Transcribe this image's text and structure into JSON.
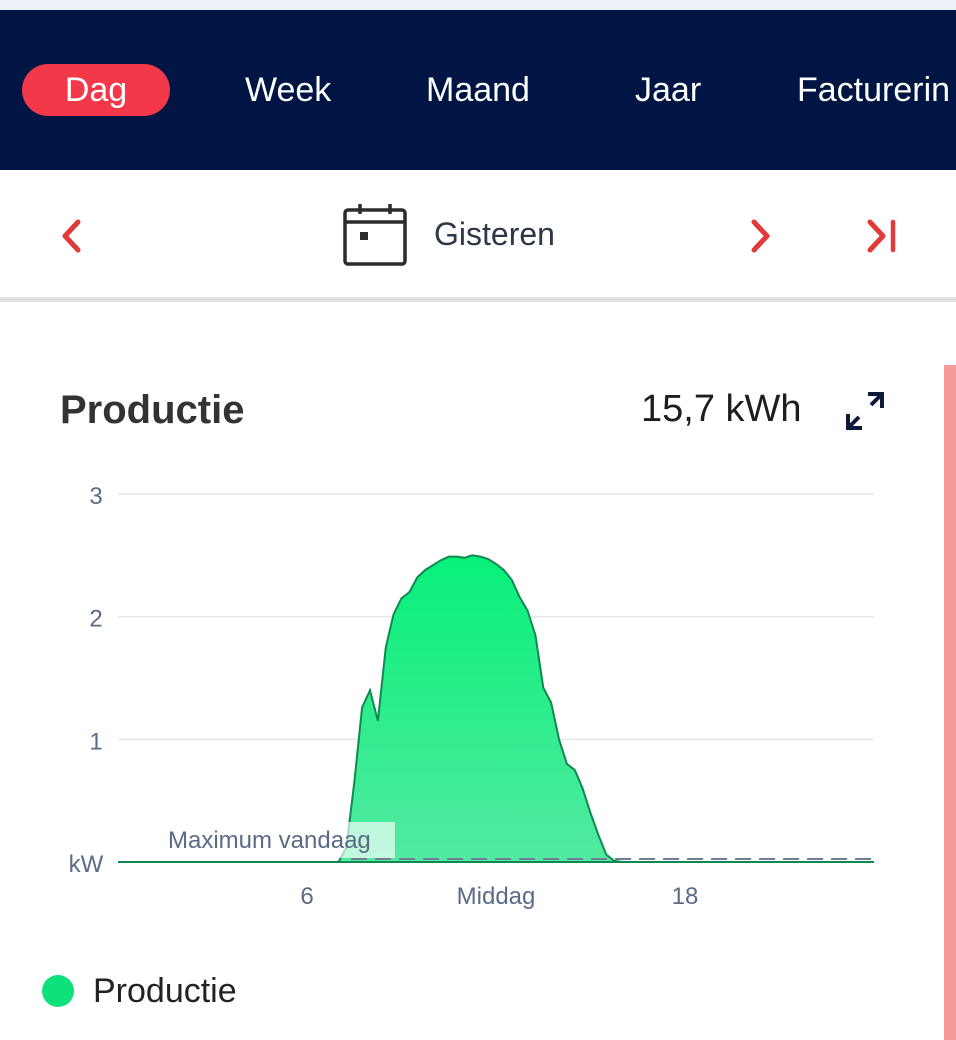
{
  "tabs": [
    {
      "label": "Dag",
      "active": true
    },
    {
      "label": "Week",
      "active": false
    },
    {
      "label": "Maand",
      "active": false
    },
    {
      "label": "Jaar",
      "active": false
    },
    {
      "label": "Facturerin",
      "active": false
    }
  ],
  "date_nav": {
    "label": "Gisteren",
    "prev_icon": "chevron-left-icon",
    "next_icon": "chevron-right-icon",
    "last_icon": "skip-to-end-icon",
    "calendar_icon": "calendar-icon"
  },
  "card": {
    "title": "Productie",
    "total": "15,7 kWh",
    "expand_icon": "expand-icon"
  },
  "colors": {
    "navbar": "#001543",
    "active_tab": "#f3384a",
    "accent": "#e23a3a",
    "production": "#0ee179"
  },
  "legend": {
    "label": "Productie"
  },
  "chart_data": {
    "type": "area",
    "ylim": [
      0,
      3
    ],
    "xlim": [
      0,
      24
    ],
    "y_ticks": [
      "kW",
      "1",
      "2",
      "3"
    ],
    "x_ticks": [
      {
        "value": 6,
        "label": "6"
      },
      {
        "value": 12,
        "label": "Middag"
      },
      {
        "value": 18,
        "label": "18"
      }
    ],
    "grid": true,
    "annotation": "Maximum vandaag",
    "series": [
      {
        "name": "Productie",
        "x": [
          0,
          7,
          7.25,
          7.5,
          7.75,
          8,
          8.25,
          8.5,
          8.75,
          9,
          9.25,
          9.5,
          9.75,
          10,
          10.25,
          10.5,
          10.75,
          11,
          11.25,
          11.5,
          11.75,
          12,
          12.25,
          12.5,
          12.75,
          13,
          13.25,
          13.5,
          13.75,
          14,
          14.25,
          14.5,
          14.75,
          15,
          15.25,
          15.5,
          15.75,
          16,
          16.25,
          16.5,
          16.75,
          17,
          17.25,
          17.5,
          24
        ],
        "y": [
          0,
          0,
          0.12,
          0.65,
          1.26,
          1.4,
          1.15,
          1.75,
          2.02,
          2.15,
          2.2,
          2.32,
          2.38,
          2.42,
          2.46,
          2.49,
          2.49,
          2.48,
          2.5,
          2.49,
          2.47,
          2.43,
          2.38,
          2.3,
          2.16,
          2.05,
          1.85,
          1.42,
          1.3,
          1.0,
          0.8,
          0.75,
          0.6,
          0.4,
          0.22,
          0.06,
          0.01,
          0,
          0,
          0,
          0,
          0,
          0,
          0,
          0
        ]
      }
    ]
  }
}
